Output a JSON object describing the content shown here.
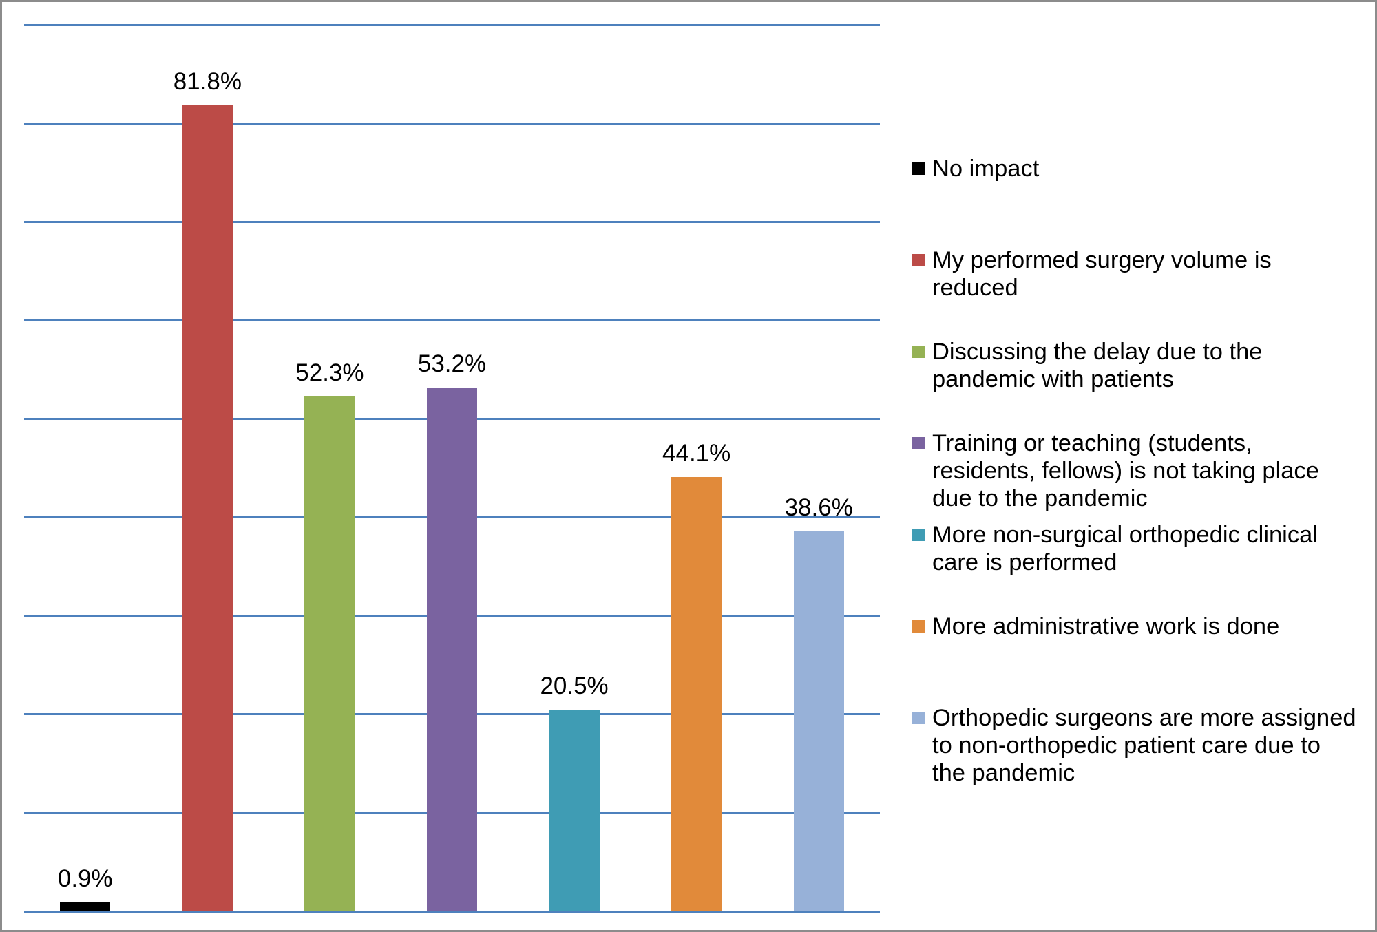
{
  "figure": {
    "background_color": "#ffffff",
    "frame_color": "#8c8c8c"
  },
  "chart_data": {
    "type": "bar",
    "title": "",
    "xlabel": "",
    "ylabel": "",
    "axis_tick_labels_shown": false,
    "ylim": [
      0,
      90
    ],
    "gridline_step_percent": 10,
    "grid": "horizontal",
    "gridline_color": "#4e81bd",
    "axis_line_color": "#4e81bd",
    "legend_position": "right",
    "categories": [
      "No impact",
      "My performed surgery volume is reduced",
      "Discussing the delay due to the pandemic with patients",
      "Training or teaching (students, residents, fellows) is not taking place due to the pandemic",
      "More non-surgical orthopedic clinical care is performed",
      "More administrative work is done",
      "Orthopedic surgeons are more assigned to non-orthopedic patient care due to the pandemic"
    ],
    "values": [
      0.9,
      81.8,
      52.3,
      53.2,
      20.5,
      44.1,
      38.6
    ],
    "value_labels": [
      "0.9%",
      "81.8%",
      "52.3%",
      "53.2%",
      "20.5%",
      "44.1%",
      "38.6%"
    ],
    "series_colors": [
      "#000000",
      "#bc4b47",
      "#95b254",
      "#7a63a0",
      "#3f9cb4",
      "#e18a3a",
      "#97b1d8"
    ]
  },
  "legend": {
    "items": [
      {
        "color": "#000000",
        "label": "No impact",
        "wrapped": "No impact"
      },
      {
        "color": "#bc4b47",
        "label": "My performed surgery volume is reduced",
        "wrapped": "My performed surgery volume is\nreduced"
      },
      {
        "color": "#95b254",
        "label": "Discussing the delay due to the pandemic with patients",
        "wrapped": "Discussing the delay due to the\npandemic with patients"
      },
      {
        "color": "#7a63a0",
        "label": "Training or teaching (students, residents, fellows) is not taking place due to the pandemic",
        "wrapped": "Training or teaching (students,\nresidents, fellows) is not taking place\ndue to the pandemic"
      },
      {
        "color": "#3f9cb4",
        "label": "More non-surgical orthopedic clinical care is performed",
        "wrapped": "More non-surgical orthopedic clinical\ncare is performed"
      },
      {
        "color": "#e18a3a",
        "label": "More administrative work is done",
        "wrapped": "More administrative work is done"
      },
      {
        "color": "#97b1d8",
        "label": "Orthopedic surgeons are more assigned to non-orthopedic patient care due to the pandemic",
        "wrapped": "Orthopedic surgeons are more assigned\nto non-orthopedic patient care due to\nthe pandemic"
      }
    ]
  }
}
